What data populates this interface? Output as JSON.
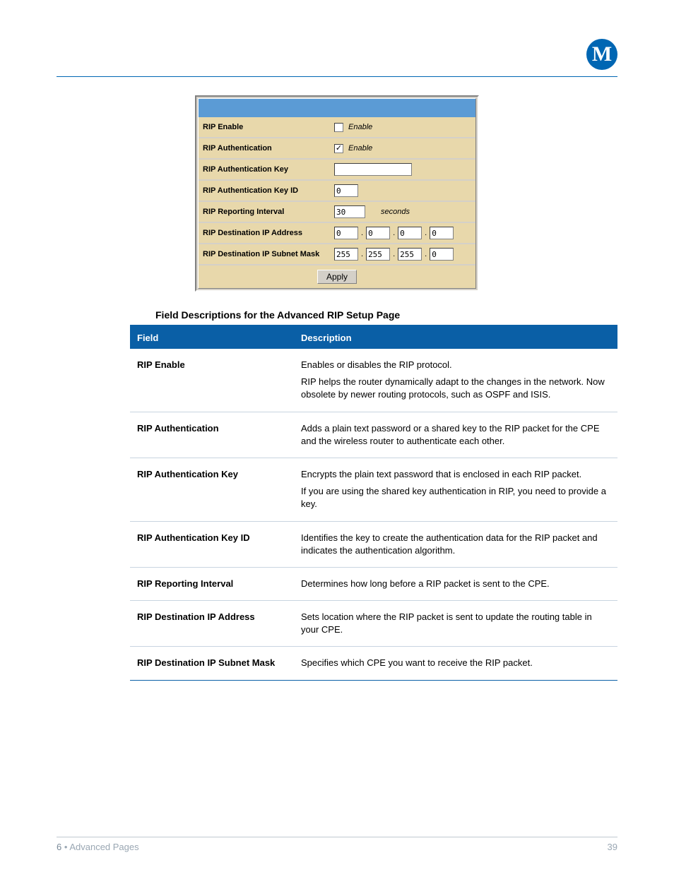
{
  "logo_letter": "M",
  "config": {
    "rows": [
      {
        "label": "RIP Enable",
        "type": "checkbox",
        "checked": false,
        "text": "Enable"
      },
      {
        "label": "RIP Authentication",
        "type": "checkbox",
        "checked": true,
        "text": "Enable"
      },
      {
        "label": "RIP Authentication Key",
        "type": "text",
        "value": "",
        "width": "lg"
      },
      {
        "label": "RIP Authentication Key ID",
        "type": "text",
        "value": "0",
        "width": "sm"
      },
      {
        "label": "RIP Reporting Interval",
        "type": "text_suffix",
        "value": "30",
        "suffix": "seconds",
        "width": "md"
      },
      {
        "label": "RIP Destination IP Address",
        "type": "ip",
        "octets": [
          "0",
          "0",
          "0",
          "0"
        ]
      },
      {
        "label": "RIP Destination IP Subnet Mask",
        "type": "ip",
        "octets": [
          "255",
          "255",
          "255",
          "0"
        ]
      }
    ],
    "apply_label": "Apply"
  },
  "section_title": "Field Descriptions for the Advanced RIP Setup Page",
  "desc_headers": {
    "field": "Field",
    "description": "Description"
  },
  "descriptions": [
    {
      "field": "RIP Enable",
      "paras": [
        "Enables or disables the RIP protocol.",
        "RIP helps the router dynamically adapt to the changes in the network. Now obsolete by newer routing protocols, such as OSPF and ISIS."
      ]
    },
    {
      "field": "RIP Authentication",
      "paras": [
        "Adds a plain text password or a shared key to the RIP packet for the CPE and the wireless router to authenticate each other."
      ]
    },
    {
      "field": "RIP Authentication Key",
      "paras": [
        "Encrypts the plain text password that is enclosed in each RIP packet.",
        "If you are using the shared key authentication in RIP, you need to provide a key."
      ]
    },
    {
      "field": "RIP Authentication Key ID",
      "paras": [
        "Identifies the key to create the authentication data for the RIP packet and indicates the authentication algorithm."
      ]
    },
    {
      "field": "RIP Reporting Interval",
      "paras": [
        "Determines how long before a RIP packet is sent to the CPE."
      ]
    },
    {
      "field": "RIP Destination IP Address",
      "paras": [
        "Sets location where the RIP packet is sent to update the routing table in your CPE."
      ]
    },
    {
      "field": "RIP Destination IP Subnet Mask",
      "paras": [
        "Specifies which CPE you want to receive the RIP packet."
      ]
    }
  ],
  "footer": {
    "chapter_num": "6",
    "bullet": "•",
    "chapter_title": "Advanced Pages",
    "page_num": "39"
  },
  "colors": {
    "brand_blue": "#0066b3",
    "table_blue": "#0a5fa6",
    "panel_header": "#5b9bd5",
    "row_bg": "#e8d8ab"
  }
}
